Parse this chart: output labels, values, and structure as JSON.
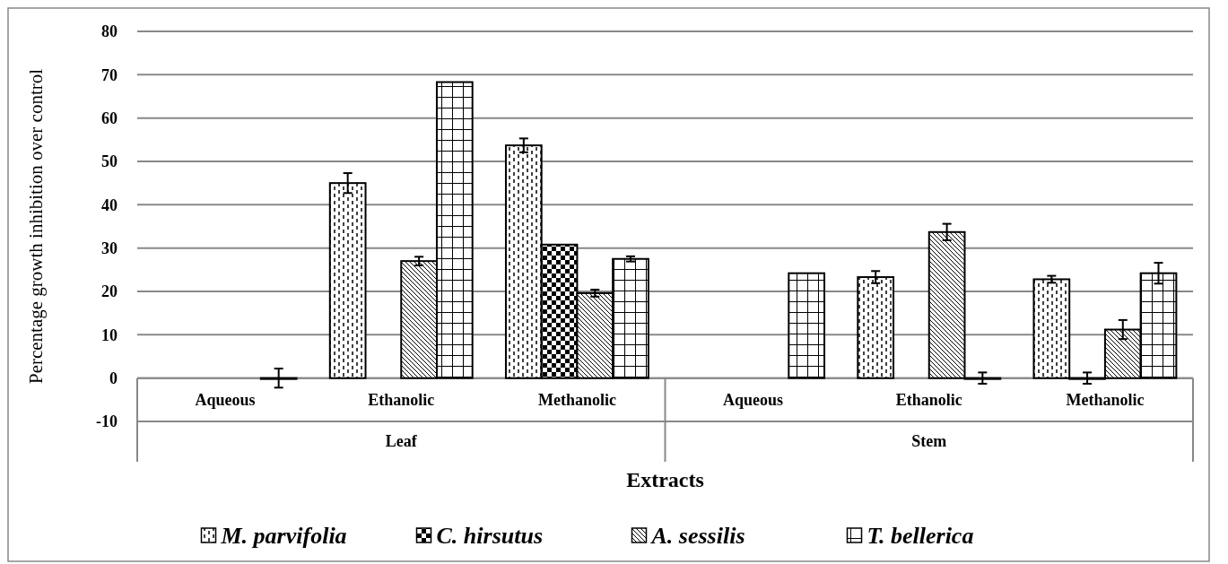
{
  "chart_data": {
    "type": "bar",
    "xlabel": "Extracts",
    "ylabel": "Percentage growth inhibition over control",
    "categories": [
      "Aqueous",
      "Ethanolic",
      "Methanolic",
      "Aqueous",
      "Ethanolic",
      "Methanolic"
    ],
    "series": [
      {
        "name": "M. parvifolia",
        "color": "#000000",
        "values": [
          null,
          45,
          53.7,
          null,
          23.3,
          22.8
        ],
        "errors": [
          null,
          2.3,
          1.6,
          null,
          1.4,
          0.8
        ]
      },
      {
        "name": "C. hirsutus",
        "color": "#000000",
        "values": [
          null,
          null,
          30.8,
          null,
          null,
          0
        ],
        "errors": [
          null,
          null,
          null,
          null,
          null,
          1.3
        ]
      },
      {
        "name": "A. sessilis",
        "color": "#000000",
        "values": [
          null,
          27,
          19.6,
          null,
          33.7,
          11.2
        ],
        "errors": [
          null,
          1,
          0.8,
          null,
          1.9,
          2.2
        ]
      },
      {
        "name": "T. bellerica",
        "color": "#000000",
        "values": [
          0,
          68.3,
          27.5,
          24.2,
          0,
          24.2
        ],
        "errors": [
          2.2,
          null,
          0.6,
          null,
          1.3,
          2.4
        ]
      }
    ],
    "annotations": [
      "Leaf",
      "Stem"
    ],
    "ylim": [
      -10,
      80
    ],
    "yticks": [
      -10,
      0,
      10,
      20,
      30,
      40,
      50,
      60,
      70,
      80
    ],
    "grid": "y",
    "legend": "bottom"
  }
}
